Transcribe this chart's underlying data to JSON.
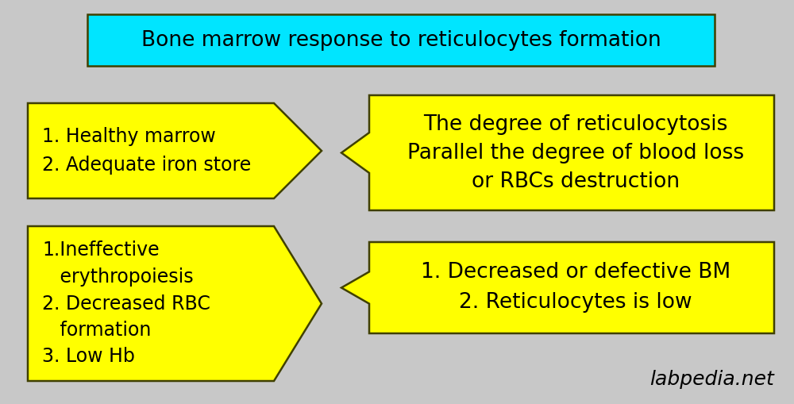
{
  "bg_color": "#c8c8c8",
  "title_text": "Bone marrow response to reticulocytes formation",
  "title_box_color": "#00e5ff",
  "title_box_edge": "#404000",
  "yellow": "#ffff00",
  "yellow_edge": "#404000",
  "box1_text": "1. Healthy marrow\n2. Adequate iron store",
  "box2_text": "The degree of reticulocytosis\nParallel the degree of blood loss\nor RBCs destruction",
  "box3_text": "1.Ineffective\n   erythropoiesis\n2. Decreased RBC\n   formation\n3. Low Hb",
  "box4_text": "1. Decreased or defective BM\n2. Reticulocytes is low",
  "watermark": "labpedia.net",
  "font_size_title": 19,
  "font_size_box1": 17,
  "font_size_box2": 19,
  "font_size_box3": 17,
  "font_size_box4": 19,
  "font_size_watermark": 18
}
